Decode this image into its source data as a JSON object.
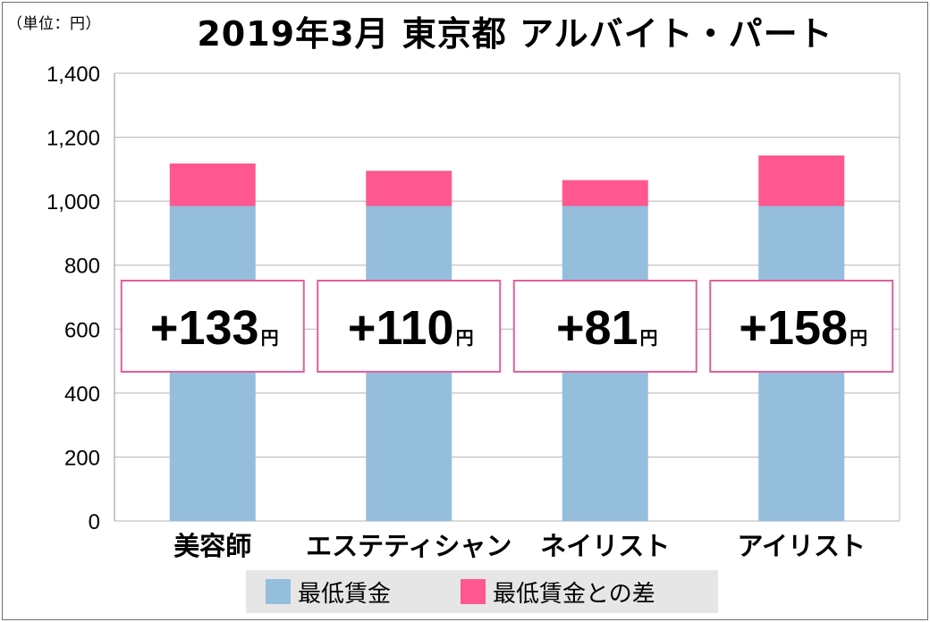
{
  "unit_label": "（単位：円）",
  "chart_data": {
    "type": "bar",
    "stacked": true,
    "title": "2019年3月 東京都 アルバイト・パート",
    "categories": [
      "美容師",
      "エステティシャン",
      "ネイリスト",
      "アイリスト"
    ],
    "series": [
      {
        "name": "最低賃金",
        "color": "#95bedc",
        "values": [
          985,
          985,
          985,
          985
        ]
      },
      {
        "name": "最低賃金との差",
        "color": "#ff5890",
        "values": [
          133,
          110,
          81,
          158
        ]
      }
    ],
    "differences": [
      {
        "sign": "+",
        "value": "133",
        "unit": "円"
      },
      {
        "sign": "+",
        "value": "110",
        "unit": "円"
      },
      {
        "sign": "+",
        "value": "81",
        "unit": "円"
      },
      {
        "sign": "+",
        "value": "158",
        "unit": "円"
      }
    ],
    "y_ticks": [
      "0",
      "200",
      "400",
      "600",
      "800",
      "1,000",
      "1,200",
      "1,400"
    ],
    "ylim": [
      0,
      1400
    ],
    "grid": true,
    "legend_position": "bottom"
  }
}
